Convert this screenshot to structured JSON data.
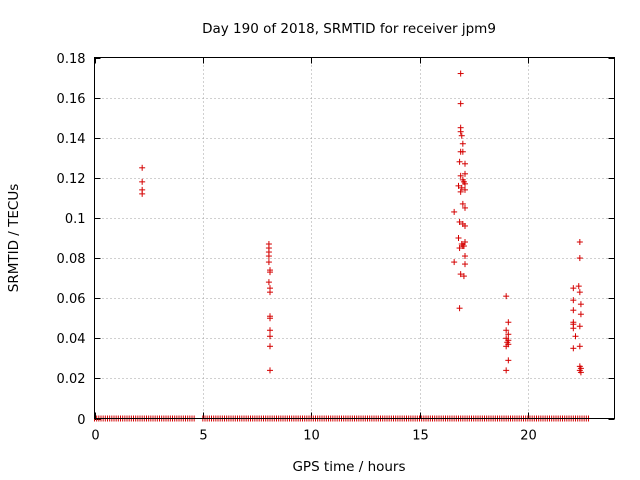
{
  "chart_data": {
    "type": "scatter",
    "title": "Day 190 of 2018, SRMTID for receiver jpm9",
    "xlabel": "GPS time / hours",
    "ylabel": "SRMTID / TECUs",
    "xlim": [
      0,
      24
    ],
    "ylim": [
      0,
      0.18
    ],
    "xticks": [
      0,
      5,
      10,
      15,
      20
    ],
    "yticks": [
      0,
      0.02,
      0.04,
      0.06,
      0.08,
      0.1,
      0.12,
      0.14,
      0.16,
      0.18
    ],
    "xtick_labels": [
      "0",
      "5",
      "10",
      "15",
      "20"
    ],
    "ytick_labels": [
      "0",
      "0.02",
      "0.04",
      "0.06",
      "0.08",
      "0.1",
      "0.12",
      "0.14",
      "0.16",
      "0.18"
    ],
    "grid": true,
    "marker": "+",
    "color": "#d40000",
    "series": [
      {
        "name": "SRMTID",
        "points": [
          [
            2.2,
            0.125
          ],
          [
            2.2,
            0.118
          ],
          [
            2.2,
            0.114
          ],
          [
            2.2,
            0.112
          ],
          [
            8.05,
            0.087
          ],
          [
            8.05,
            0.085
          ],
          [
            8.05,
            0.083
          ],
          [
            8.05,
            0.081
          ],
          [
            8.05,
            0.078
          ],
          [
            8.1,
            0.074
          ],
          [
            8.1,
            0.073
          ],
          [
            8.05,
            0.068
          ],
          [
            8.1,
            0.065
          ],
          [
            8.1,
            0.063
          ],
          [
            8.1,
            0.051
          ],
          [
            8.1,
            0.05
          ],
          [
            8.1,
            0.044
          ],
          [
            8.1,
            0.041
          ],
          [
            8.1,
            0.036
          ],
          [
            8.1,
            0.024
          ],
          [
            16.6,
            0.103
          ],
          [
            16.6,
            0.078
          ],
          [
            16.9,
            0.172
          ],
          [
            16.9,
            0.157
          ],
          [
            16.9,
            0.145
          ],
          [
            16.9,
            0.143
          ],
          [
            16.95,
            0.141
          ],
          [
            17.0,
            0.137
          ],
          [
            16.9,
            0.133
          ],
          [
            17.0,
            0.133
          ],
          [
            16.85,
            0.128
          ],
          [
            17.1,
            0.127
          ],
          [
            17.1,
            0.122
          ],
          [
            16.9,
            0.121
          ],
          [
            17.0,
            0.119
          ],
          [
            17.05,
            0.118
          ],
          [
            17.1,
            0.117
          ],
          [
            16.8,
            0.116
          ],
          [
            16.95,
            0.115
          ],
          [
            17.1,
            0.114
          ],
          [
            16.9,
            0.113
          ],
          [
            17.0,
            0.107
          ],
          [
            17.1,
            0.105
          ],
          [
            16.85,
            0.098
          ],
          [
            17.0,
            0.097
          ],
          [
            17.1,
            0.096
          ],
          [
            16.8,
            0.09
          ],
          [
            17.1,
            0.088
          ],
          [
            16.95,
            0.087
          ],
          [
            17.0,
            0.086
          ],
          [
            17.05,
            0.086
          ],
          [
            16.85,
            0.085
          ],
          [
            17.1,
            0.081
          ],
          [
            17.1,
            0.077
          ],
          [
            16.9,
            0.072
          ],
          [
            17.05,
            0.071
          ],
          [
            16.85,
            0.055
          ],
          [
            19.0,
            0.061
          ],
          [
            19.1,
            0.048
          ],
          [
            19.0,
            0.044
          ],
          [
            19.1,
            0.042
          ],
          [
            19.0,
            0.04
          ],
          [
            19.1,
            0.039
          ],
          [
            19.05,
            0.038
          ],
          [
            19.1,
            0.037
          ],
          [
            19.0,
            0.036
          ],
          [
            19.1,
            0.029
          ],
          [
            19.0,
            0.024
          ],
          [
            22.1,
            0.065
          ],
          [
            22.1,
            0.059
          ],
          [
            22.1,
            0.054
          ],
          [
            22.1,
            0.048
          ],
          [
            22.1,
            0.047
          ],
          [
            22.1,
            0.045
          ],
          [
            22.2,
            0.041
          ],
          [
            22.1,
            0.035
          ],
          [
            22.4,
            0.088
          ],
          [
            22.4,
            0.08
          ],
          [
            22.35,
            0.066
          ],
          [
            22.4,
            0.063
          ],
          [
            22.45,
            0.057
          ],
          [
            22.45,
            0.052
          ],
          [
            22.4,
            0.046
          ],
          [
            22.4,
            0.036
          ],
          [
            22.4,
            0.026
          ],
          [
            22.45,
            0.025
          ],
          [
            22.4,
            0.024
          ],
          [
            22.45,
            0.023
          ]
        ]
      }
    ],
    "zero_bands_hours": [
      [
        0,
        3.9
      ],
      [
        4.0,
        4.6
      ],
      [
        5.0,
        11.2
      ],
      [
        11.3,
        16.4
      ],
      [
        16.5,
        22.8
      ]
    ]
  }
}
